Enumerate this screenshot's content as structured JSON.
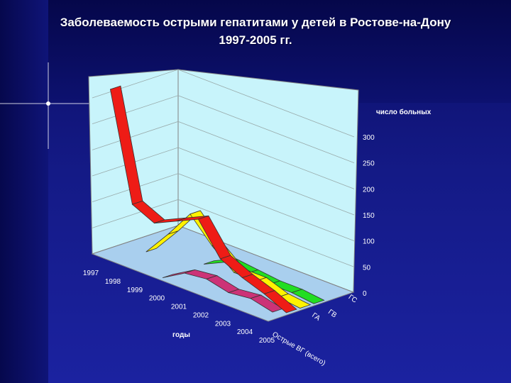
{
  "slide": {
    "title_line1": "Заболеваемость острыми гепатитами у детей в Ростове-на-Дону",
    "title_line2": "1997-2005 гг."
  },
  "colors": {
    "wall": "#c8f4fb",
    "floor": "#a9cfee",
    "ga": "#ee1c16",
    "gv": "#fff200",
    "gs": "#22dd22",
    "total": "#cc3377"
  },
  "chart_data": {
    "type": "line",
    "title": "Заболеваемость острыми гепатитами у детей в Ростове-на-Дону 1997-2005 гг.",
    "zlabel": "годы",
    "ylabel": "число больных",
    "categories": [
      "1997",
      "1998",
      "1999",
      "2000",
      "2001",
      "2002",
      "2003",
      "2004",
      "2005"
    ],
    "depth_categories": [
      "Острые ВГ (всего)",
      "ГА",
      "ГВ",
      "ГС"
    ],
    "y_ticks": [
      "0",
      "50",
      "100",
      "150",
      "200",
      "250",
      "300"
    ],
    "ylim": [
      0,
      300
    ],
    "series": [
      {
        "name": "Острые ВГ (всего)",
        "values": [
          0,
          0,
          0,
          0,
          25,
          30,
          20,
          25,
          15
        ]
      },
      {
        "name": "ГА",
        "values": [
          305,
          100,
          80,
          100,
          120,
          60,
          40,
          25,
          5
        ]
      },
      {
        "name": "ГВ",
        "values": [
          0,
          0,
          50,
          105,
          60,
          25,
          25,
          10,
          5
        ]
      },
      {
        "name": "ГС",
        "values": [
          0,
          0,
          0,
          0,
          20,
          15,
          10,
          10,
          5
        ]
      }
    ]
  }
}
